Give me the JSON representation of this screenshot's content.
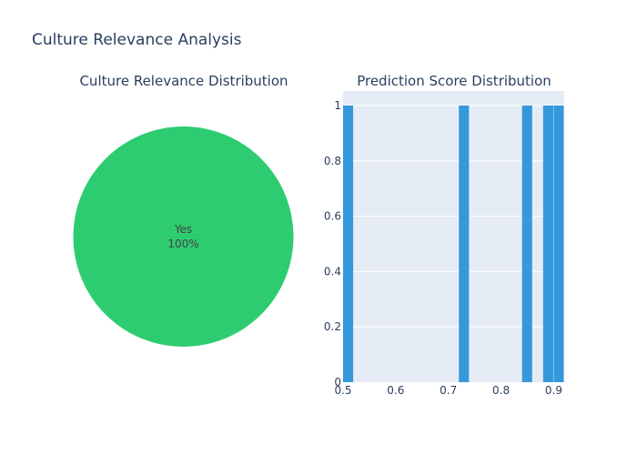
{
  "figure": {
    "title": "Culture Relevance Analysis"
  },
  "chart_data": [
    {
      "type": "pie",
      "title": "Culture Relevance Distribution",
      "labels": [
        "Yes"
      ],
      "values": [
        100
      ],
      "percent_labels": [
        "100%"
      ],
      "colors": [
        "#2ecc71"
      ]
    },
    {
      "type": "bar",
      "subtype": "histogram",
      "title": "Prediction Score Distribution",
      "xlabel": "",
      "ylabel": "",
      "xlim": [
        0.5,
        0.92
      ],
      "ylim": [
        0,
        1
      ],
      "x_ticks": [
        0.5,
        0.6,
        0.7,
        0.8,
        0.9
      ],
      "y_ticks": [
        0,
        0.2,
        0.4,
        0.6,
        0.8,
        1
      ],
      "bars": [
        {
          "x_start": 0.5,
          "x_end": 0.52,
          "count": 1
        },
        {
          "x_start": 0.72,
          "x_end": 0.74,
          "count": 1
        },
        {
          "x_start": 0.84,
          "x_end": 0.86,
          "count": 1
        },
        {
          "x_start": 0.88,
          "x_end": 0.9,
          "count": 1
        },
        {
          "x_start": 0.9,
          "x_end": 0.92,
          "count": 1
        }
      ],
      "bar_color": "#3498db",
      "plot_background": "#e5ecf6",
      "grid": true
    }
  ]
}
